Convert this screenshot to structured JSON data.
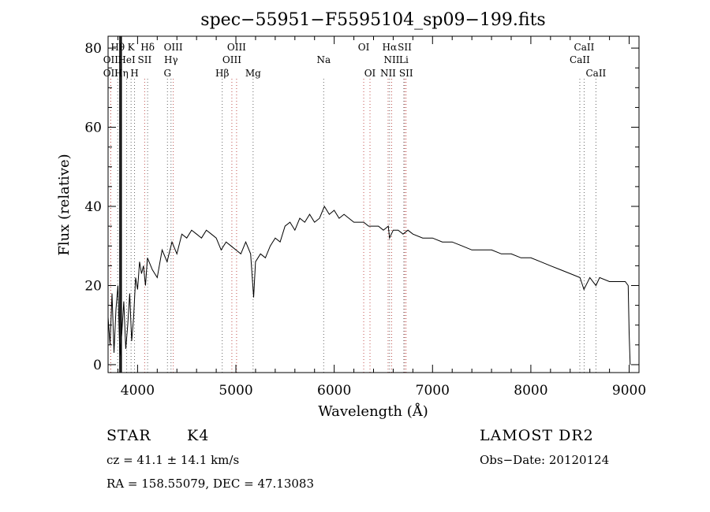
{
  "chart_data": {
    "type": "line",
    "title": "spec−55951−F5595104_sp09−199.fits",
    "xlabel": "Wavelength (Å)",
    "ylabel": "Flux (relative)",
    "xlim": [
      3700,
      9100
    ],
    "ylim": [
      -2,
      83
    ],
    "xticks": [
      4000,
      5000,
      6000,
      7000,
      8000,
      9000
    ],
    "yticks": [
      0,
      20,
      40,
      60,
      80
    ],
    "grid": false,
    "series": [
      {
        "x": [
          3700,
          3720,
          3740,
          3760,
          3780,
          3800,
          3820,
          3840,
          3860,
          3880,
          3900,
          3920,
          3940,
          3960,
          3980,
          4000,
          4020,
          4040,
          4060,
          4080,
          4100,
          4150,
          4200,
          4250,
          4300,
          4350,
          4400,
          4450,
          4500,
          4550,
          4600,
          4650,
          4700,
          4750,
          4800,
          4850,
          4900,
          4950,
          5000,
          5050,
          5100,
          5150,
          5180,
          5200,
          5250,
          5300,
          5350,
          5400,
          5450,
          5500,
          5550,
          5600,
          5650,
          5700,
          5750,
          5800,
          5850,
          5900,
          5950,
          6000,
          6050,
          6100,
          6150,
          6200,
          6250,
          6300,
          6350,
          6400,
          6450,
          6500,
          6550,
          6563,
          6600,
          6650,
          6700,
          6750,
          6800,
          6900,
          7000,
          7100,
          7200,
          7300,
          7400,
          7500,
          7600,
          7700,
          7800,
          7900,
          8000,
          8100,
          8200,
          8300,
          8400,
          8500,
          8540,
          8600,
          8662,
          8700,
          8800,
          8900,
          8960,
          8990,
          9000,
          9010
        ],
        "y": [
          12,
          5,
          18,
          3,
          14,
          20,
          2,
          8,
          16,
          4,
          10,
          18,
          6,
          12,
          22,
          19,
          26,
          23,
          25,
          20,
          27,
          24,
          22,
          29,
          26,
          31,
          28,
          33,
          32,
          34,
          33,
          32,
          34,
          33,
          32,
          29,
          31,
          30,
          29,
          28,
          31,
          28,
          17,
          26,
          28,
          27,
          30,
          32,
          31,
          35,
          36,
          34,
          37,
          36,
          38,
          36,
          37,
          40,
          38,
          39,
          37,
          38,
          37,
          36,
          36,
          36,
          35,
          35,
          35,
          34,
          35,
          32,
          34,
          34,
          33,
          34,
          33,
          32,
          32,
          31,
          31,
          30,
          29,
          29,
          29,
          28,
          28,
          27,
          27,
          26,
          25,
          24,
          23,
          22,
          19,
          22,
          20,
          22,
          21,
          21,
          21,
          20,
          8,
          0
        ]
      }
    ],
    "spectral_lines": [
      {
        "label": "Hθ",
        "wl": 3798,
        "row": 0
      },
      {
        "label": "K",
        "wl": 3934,
        "row": 0
      },
      {
        "label": "Hδ",
        "wl": 4102,
        "row": 0
      },
      {
        "label": "OIII",
        "wl": 4363,
        "row": 0
      },
      {
        "label": "OIII",
        "wl": 5007,
        "row": 0
      },
      {
        "label": "OI",
        "wl": 6300,
        "row": 0
      },
      {
        "label": "Hα",
        "wl": 6563,
        "row": 0
      },
      {
        "label": "SII",
        "wl": 6717,
        "row": 0
      },
      {
        "label": "CaII",
        "wl": 8542,
        "row": 0
      },
      {
        "label": "OII",
        "wl": 3727,
        "row": 1
      },
      {
        "label": "HeI",
        "wl": 3889,
        "row": 1
      },
      {
        "label": "SII",
        "wl": 4072,
        "row": 1
      },
      {
        "label": "Hγ",
        "wl": 4340,
        "row": 1
      },
      {
        "label": "OIII",
        "wl": 4959,
        "row": 1
      },
      {
        "label": "Na",
        "wl": 5893,
        "row": 1
      },
      {
        "label": "NII",
        "wl": 6584,
        "row": 1
      },
      {
        "label": "Li",
        "wl": 6708,
        "row": 1
      },
      {
        "label": "CaII",
        "wl": 8498,
        "row": 1
      },
      {
        "label": "OII",
        "wl": 3727,
        "row": 2
      },
      {
        "label": "Hη",
        "wl": 3835,
        "row": 2
      },
      {
        "label": "H",
        "wl": 3969,
        "row": 2
      },
      {
        "label": "G",
        "wl": 4304,
        "row": 2
      },
      {
        "label": "Hβ",
        "wl": 4861,
        "row": 2
      },
      {
        "label": "Mg",
        "wl": 5175,
        "row": 2
      },
      {
        "label": "OI",
        "wl": 6364,
        "row": 2
      },
      {
        "label": "NII",
        "wl": 6548,
        "row": 2
      },
      {
        "label": "SII",
        "wl": 6731,
        "row": 2
      },
      {
        "label": "CaII",
        "wl": 8662,
        "row": 2
      }
    ],
    "marker_lines": [
      3820,
      3834
    ],
    "colors": {
      "emission_line": "#c0504d",
      "absorption_line": "#666666",
      "spectrum": "#000000"
    }
  },
  "info": {
    "object_class": "STAR",
    "subclass": "K4",
    "survey": "LAMOST DR2",
    "redshift": "cz = 41.1 ± 14.1 km/s",
    "obs_date": "Obs−Date: 20120124",
    "coords": "RA = 158.55079, DEC =  47.13083"
  }
}
